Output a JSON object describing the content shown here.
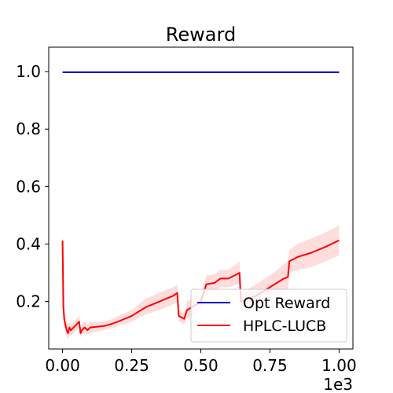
{
  "chart_data": {
    "type": "line",
    "title": "Reward",
    "xlabel": "",
    "ylabel": "",
    "x_offset_text": "1e3",
    "xlim": [
      -0.05,
      1.05
    ],
    "ylim": [
      0.035,
      1.085
    ],
    "xticks": [
      0.0,
      0.25,
      0.5,
      0.75,
      1.0
    ],
    "xtick_labels": [
      "0.00",
      "0.25",
      "0.50",
      "0.75",
      "1.00"
    ],
    "yticks": [
      0.2,
      0.4,
      0.6,
      0.8,
      1.0
    ],
    "ytick_labels": [
      "0.2",
      "0.4",
      "0.6",
      "0.8",
      "1.0"
    ],
    "grid": false,
    "legend_position": "lower-right",
    "series": [
      {
        "name": "Opt Reward",
        "color": "#0000cc",
        "x": [
          0.0,
          1.0
        ],
        "y": [
          0.998,
          0.998
        ]
      },
      {
        "name": "HPLC-LUCB",
        "color": "#ff0000",
        "band_color": "#ffb3b3",
        "x": [
          0.0,
          0.003,
          0.006,
          0.01,
          0.015,
          0.02,
          0.025,
          0.03,
          0.04,
          0.05,
          0.06,
          0.065,
          0.07,
          0.08,
          0.09,
          0.1,
          0.15,
          0.17,
          0.2,
          0.25,
          0.3,
          0.35,
          0.4,
          0.415,
          0.42,
          0.44,
          0.45,
          0.5,
          0.52,
          0.55,
          0.57,
          0.6,
          0.64,
          0.645,
          0.7,
          0.75,
          0.8,
          0.815,
          0.82,
          0.85,
          0.9,
          0.95,
          1.0
        ],
        "y": [
          0.412,
          0.18,
          0.14,
          0.12,
          0.1,
          0.09,
          0.11,
          0.1,
          0.11,
          0.12,
          0.13,
          0.09,
          0.1,
          0.11,
          0.1,
          0.11,
          0.115,
          0.12,
          0.13,
          0.15,
          0.18,
          0.2,
          0.22,
          0.23,
          0.15,
          0.14,
          0.17,
          0.2,
          0.26,
          0.265,
          0.28,
          0.28,
          0.3,
          0.2,
          0.22,
          0.25,
          0.28,
          0.285,
          0.34,
          0.355,
          0.37,
          0.39,
          0.413
        ],
        "band_lower": [
          0.36,
          0.14,
          0.11,
          0.09,
          0.075,
          0.07,
          0.085,
          0.08,
          0.09,
          0.1,
          0.11,
          0.075,
          0.085,
          0.09,
          0.085,
          0.09,
          0.1,
          0.105,
          0.115,
          0.13,
          0.155,
          0.17,
          0.19,
          0.2,
          0.13,
          0.12,
          0.14,
          0.17,
          0.23,
          0.235,
          0.25,
          0.25,
          0.26,
          0.17,
          0.18,
          0.21,
          0.23,
          0.24,
          0.3,
          0.31,
          0.32,
          0.34,
          0.36
        ],
        "band_upper": [
          0.47,
          0.23,
          0.17,
          0.15,
          0.13,
          0.12,
          0.13,
          0.125,
          0.13,
          0.14,
          0.15,
          0.11,
          0.12,
          0.13,
          0.12,
          0.13,
          0.13,
          0.135,
          0.15,
          0.17,
          0.21,
          0.23,
          0.25,
          0.26,
          0.17,
          0.16,
          0.2,
          0.23,
          0.29,
          0.295,
          0.31,
          0.31,
          0.34,
          0.23,
          0.26,
          0.29,
          0.33,
          0.34,
          0.38,
          0.4,
          0.42,
          0.44,
          0.465
        ]
      }
    ]
  }
}
